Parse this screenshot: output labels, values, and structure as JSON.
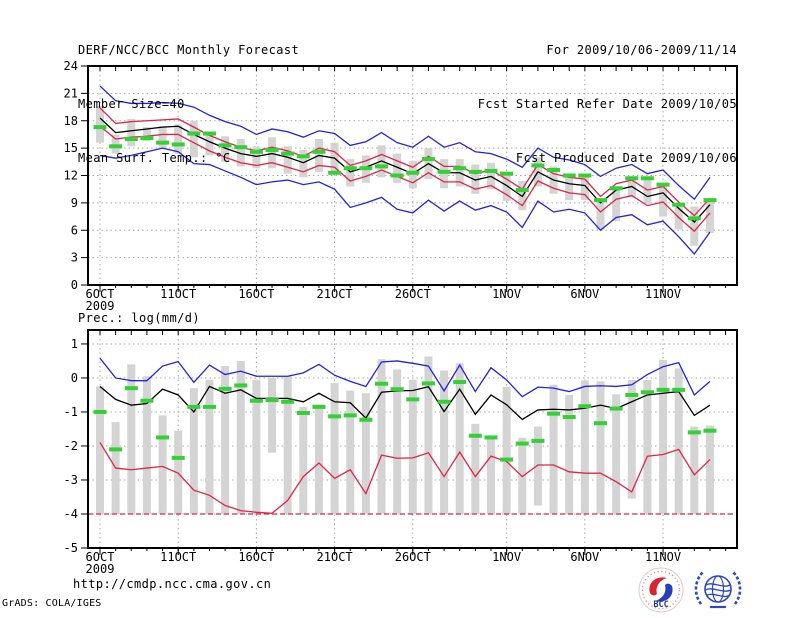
{
  "header": {
    "title": "DERF/NCC/BCC Monthly Forecast",
    "member_size": "Member Size=40",
    "temp_panel_title": "Mean Surf. Temp.: °C",
    "valid_range": "For 2009/10/06-2009/11/14",
    "fcst_refer": "Fcst Started Refer Date 2009/10/05",
    "fcst_produced": "Fcst Produced Date 2009/10/06"
  },
  "prec_panel_title": "Prec.: log(mm/d)",
  "footer": {
    "url": "http://cmdp.ncc.cma.gov.cn",
    "credit": "GrADS: COLA/IGES",
    "bcc_label": "BCC"
  },
  "colors": {
    "max_min_line": "#2222dd",
    "envelope_line": "#e02448",
    "mean_line": "#000000",
    "obs_dash": "#35d035",
    "member_bar": "#d4d4d4",
    "grid": "#a8a8a8",
    "frame": "#000000"
  },
  "chart_data": [
    {
      "type": "line",
      "title": "Mean Surf. Temp.: °C",
      "ylabel": "",
      "ylim": [
        0,
        24
      ],
      "yticks": [
        0,
        3,
        6,
        9,
        12,
        15,
        18,
        21,
        24
      ],
      "grid": true,
      "n_days": 40,
      "xticklabels": [
        {
          "day": 0,
          "label": "6OCT",
          "sub": "2009"
        },
        {
          "day": 5,
          "label": "11OCT"
        },
        {
          "day": 10,
          "label": "16OCT"
        },
        {
          "day": 15,
          "label": "21OCT"
        },
        {
          "day": 20,
          "label": "26OCT"
        },
        {
          "day": 26,
          "label": "1NOV"
        },
        {
          "day": 31,
          "label": "6NOV"
        },
        {
          "day": 36,
          "label": "11NOV"
        }
      ],
      "series": [
        {
          "name": "ensemble-max",
          "color": "#2222dd",
          "values": [
            21.8,
            20.2,
            19.9,
            19.9,
            20.0,
            19.9,
            19.5,
            18.6,
            17.9,
            17.4,
            16.5,
            17.1,
            16.8,
            16.2,
            16.9,
            16.6,
            15.3,
            15.7,
            16.7,
            15.6,
            15.1,
            16.3,
            15.1,
            15.6,
            14.6,
            14.4,
            13.8,
            12.9,
            15.0,
            14.0,
            13.7,
            13.2,
            11.9,
            12.8,
            13.2,
            12.2,
            12.6,
            10.9,
            9.4,
            11.8
          ]
        },
        {
          "name": "ensemble-upper",
          "color": "#e02448",
          "values": [
            19.4,
            17.7,
            17.9,
            18.0,
            18.1,
            18.2,
            17.3,
            16.4,
            15.7,
            15.1,
            14.7,
            15.1,
            14.7,
            14.1,
            15.0,
            14.6,
            13.1,
            13.6,
            14.3,
            13.6,
            12.9,
            14.1,
            13.0,
            13.0,
            12.2,
            12.6,
            11.6,
            10.5,
            13.2,
            12.2,
            11.8,
            11.6,
            9.7,
            11.1,
            11.5,
            10.4,
            10.8,
            9.1,
            7.6,
            9.5
          ]
        },
        {
          "name": "ensemble-lower",
          "color": "#e02448",
          "values": [
            17.4,
            16.0,
            16.2,
            16.3,
            16.5,
            16.5,
            15.6,
            14.7,
            14.0,
            13.4,
            13.1,
            13.4,
            12.9,
            12.4,
            13.1,
            12.9,
            11.4,
            11.9,
            12.6,
            11.9,
            11.2,
            12.3,
            11.3,
            11.3,
            10.5,
            10.9,
            9.9,
            8.7,
            11.4,
            10.6,
            10.1,
            9.9,
            8.0,
            9.4,
            9.8,
            8.7,
            9.1,
            7.4,
            5.9,
            7.9
          ]
        },
        {
          "name": "ensemble-min",
          "color": "#2222dd",
          "values": [
            14.2,
            13.9,
            14.2,
            14.6,
            15.0,
            14.6,
            13.3,
            13.2,
            12.5,
            11.8,
            11.0,
            11.3,
            11.5,
            11.0,
            11.3,
            10.5,
            8.5,
            9.0,
            9.6,
            8.3,
            7.9,
            9.3,
            8.1,
            9.2,
            8.2,
            8.7,
            8.0,
            6.3,
            9.2,
            8.0,
            8.3,
            7.9,
            6.0,
            7.4,
            7.7,
            6.6,
            7.0,
            5.3,
            3.4,
            5.8
          ]
        },
        {
          "name": "ensemble-mean",
          "color": "#000000",
          "values": [
            18.3,
            16.7,
            16.9,
            17.1,
            17.3,
            17.4,
            16.5,
            15.7,
            15.0,
            14.4,
            14.1,
            14.4,
            14.0,
            13.4,
            14.2,
            13.9,
            12.4,
            12.9,
            13.6,
            12.9,
            12.2,
            13.3,
            12.3,
            12.3,
            11.5,
            11.9,
            10.9,
            9.7,
            12.4,
            11.5,
            11.1,
            10.9,
            9.0,
            10.4,
            10.8,
            9.7,
            10.1,
            8.4,
            6.9,
            8.8
          ]
        }
      ],
      "bars": {
        "name": "member-spread-bar",
        "hi": [
          19.6,
          16.5,
          18.2,
          17.3,
          17.4,
          17.6,
          18.0,
          16.5,
          16.3,
          16.0,
          15.2,
          16.2,
          15.2,
          14.8,
          16.0,
          15.6,
          13.8,
          14.2,
          15.3,
          14.4,
          13.6,
          15.0,
          13.8,
          13.8,
          13.2,
          13.4,
          12.4,
          11.4,
          14.0,
          13.0,
          12.1,
          12.1,
          9.3,
          10.6,
          11.7,
          11.7,
          11.0,
          8.8,
          8.6,
          9.3
        ],
        "lo": [
          15.6,
          14.4,
          15.2,
          15.8,
          15.0,
          14.4,
          14.0,
          14.2,
          13.5,
          13.0,
          12.8,
          12.8,
          12.2,
          11.8,
          12.4,
          12.2,
          10.8,
          11.2,
          11.8,
          11.2,
          10.6,
          11.6,
          10.6,
          10.8,
          10.0,
          10.5,
          9.2,
          8.2,
          10.8,
          10.0,
          9.3,
          9.3,
          6.1,
          7.0,
          9.6,
          8.9,
          7.5,
          6.1,
          4.3,
          5.7
        ]
      },
      "obs": {
        "name": "observation-dash",
        "color": "#35d035",
        "values": [
          17.3,
          15.2,
          16.0,
          16.1,
          15.6,
          15.4,
          16.6,
          16.6,
          15.3,
          15.1,
          14.6,
          14.8,
          14.4,
          14.1,
          14.6,
          12.3,
          12.8,
          12.8,
          13.0,
          12.0,
          12.3,
          13.8,
          12.4,
          12.8,
          12.4,
          12.5,
          12.2,
          10.4,
          13.1,
          12.6,
          12.0,
          12.0,
          9.3,
          10.6,
          11.7,
          11.7,
          11.0,
          8.8,
          7.3,
          9.3
        ]
      }
    },
    {
      "type": "line",
      "title": "Prec.: log(mm/d)",
      "ylabel": "",
      "ylim": [
        -5,
        1.41
      ],
      "yticks": [
        1,
        0,
        -1,
        -2,
        -3,
        -4,
        -5
      ],
      "grid": true,
      "n_days": 40,
      "baseline": {
        "value": -4,
        "color": "#e02448",
        "dashed": true
      },
      "xticklabels": [
        {
          "day": 0,
          "label": "6OCT",
          "sub": "2009"
        },
        {
          "day": 5,
          "label": "11OCT"
        },
        {
          "day": 10,
          "label": "16OCT"
        },
        {
          "day": 15,
          "label": "21OCT"
        },
        {
          "day": 20,
          "label": "26OCT"
        },
        {
          "day": 26,
          "label": "1NOV"
        },
        {
          "day": 31,
          "label": "6NOV"
        },
        {
          "day": 36,
          "label": "11NOV"
        }
      ],
      "series": [
        {
          "name": "ensemble-max",
          "color": "#2222dd",
          "values": [
            0.58,
            0.0,
            -0.08,
            -0.08,
            0.35,
            0.48,
            -0.13,
            0.38,
            0.1,
            0.2,
            0.05,
            0.05,
            0.05,
            0.15,
            0.4,
            0.08,
            -0.1,
            -0.25,
            0.47,
            0.5,
            0.43,
            0.35,
            -0.38,
            0.38,
            -0.4,
            0.3,
            -0.06,
            -0.55,
            -0.27,
            -0.3,
            -0.4,
            -0.25,
            -0.23,
            -0.25,
            -0.2,
            0.1,
            0.33,
            0.45,
            -0.5,
            -0.1
          ]
        },
        {
          "name": "ensemble-mean",
          "color": "#000000",
          "values": [
            -0.25,
            -0.63,
            -0.8,
            -0.75,
            -0.33,
            -0.5,
            -1.0,
            -0.25,
            -0.45,
            -0.35,
            -0.6,
            -0.6,
            -0.6,
            -0.7,
            -0.45,
            -0.7,
            -0.73,
            -1.18,
            -0.42,
            -0.38,
            -0.37,
            -0.26,
            -0.99,
            -0.33,
            -1.07,
            -0.5,
            -0.79,
            -1.22,
            -0.94,
            -0.92,
            -0.94,
            -0.89,
            -0.8,
            -0.9,
            -0.7,
            -0.5,
            -0.45,
            -0.4,
            -1.1,
            -0.8
          ]
        },
        {
          "name": "ensemble-min",
          "color": "#e02448",
          "values": [
            -1.9,
            -2.65,
            -2.7,
            -2.65,
            -2.6,
            -2.8,
            -3.3,
            -3.45,
            -3.75,
            -3.9,
            -3.95,
            -3.98,
            -3.6,
            -2.9,
            -2.5,
            -2.95,
            -2.7,
            -3.4,
            -2.27,
            -2.36,
            -2.35,
            -2.2,
            -2.9,
            -2.18,
            -2.9,
            -2.3,
            -2.46,
            -2.9,
            -2.56,
            -2.56,
            -2.76,
            -2.8,
            -2.8,
            -3.05,
            -3.35,
            -2.3,
            -2.25,
            -2.1,
            -2.85,
            -2.4
          ]
        }
      ],
      "bars": {
        "name": "member-spread-bar",
        "hi": [
          -0.25,
          -1.3,
          0.4,
          0.05,
          -1.1,
          -1.55,
          -0.3,
          -0.05,
          0.35,
          0.5,
          -0.05,
          0.0,
          0.05,
          -0.85,
          -0.78,
          -0.15,
          -0.37,
          -0.45,
          0.55,
          0.25,
          -0.05,
          0.63,
          0.22,
          0.43,
          -1.35,
          -1.73,
          -0.26,
          -1.76,
          -1.43,
          -0.2,
          -0.5,
          -0.07,
          -0.1,
          -0.48,
          -0.06,
          -0.06,
          0.53,
          0.28,
          -1.43,
          -1.4
        ],
        "lo": [
          -4,
          -4,
          -4,
          -4,
          -4,
          -4,
          -4,
          -4,
          -4,
          -4,
          -4,
          -2.2,
          -4,
          -4,
          -4,
          -4,
          -4,
          -4,
          -4,
          -4,
          -4,
          -4,
          -4,
          -4,
          -4,
          -4,
          -4,
          -4,
          -3.75,
          -4,
          -4,
          -4,
          -4,
          -4,
          -3.55,
          -4,
          -4,
          -4,
          -4,
          -4
        ]
      },
      "obs": {
        "name": "observation-dash",
        "color": "#35d035",
        "values": [
          -1.0,
          -2.1,
          -0.3,
          -0.67,
          -1.75,
          -2.35,
          -0.85,
          -0.85,
          -0.32,
          -0.22,
          -0.67,
          -0.65,
          -0.7,
          -1.03,
          -0.85,
          -1.13,
          -1.1,
          -1.23,
          -0.17,
          -0.33,
          -0.63,
          -0.16,
          -0.7,
          -0.12,
          -1.7,
          -1.75,
          -2.4,
          -1.93,
          -1.85,
          -1.05,
          -1.15,
          -0.83,
          -1.33,
          -0.9,
          -0.5,
          -0.42,
          -0.35,
          -0.35,
          -1.6,
          -1.55
        ]
      }
    }
  ]
}
